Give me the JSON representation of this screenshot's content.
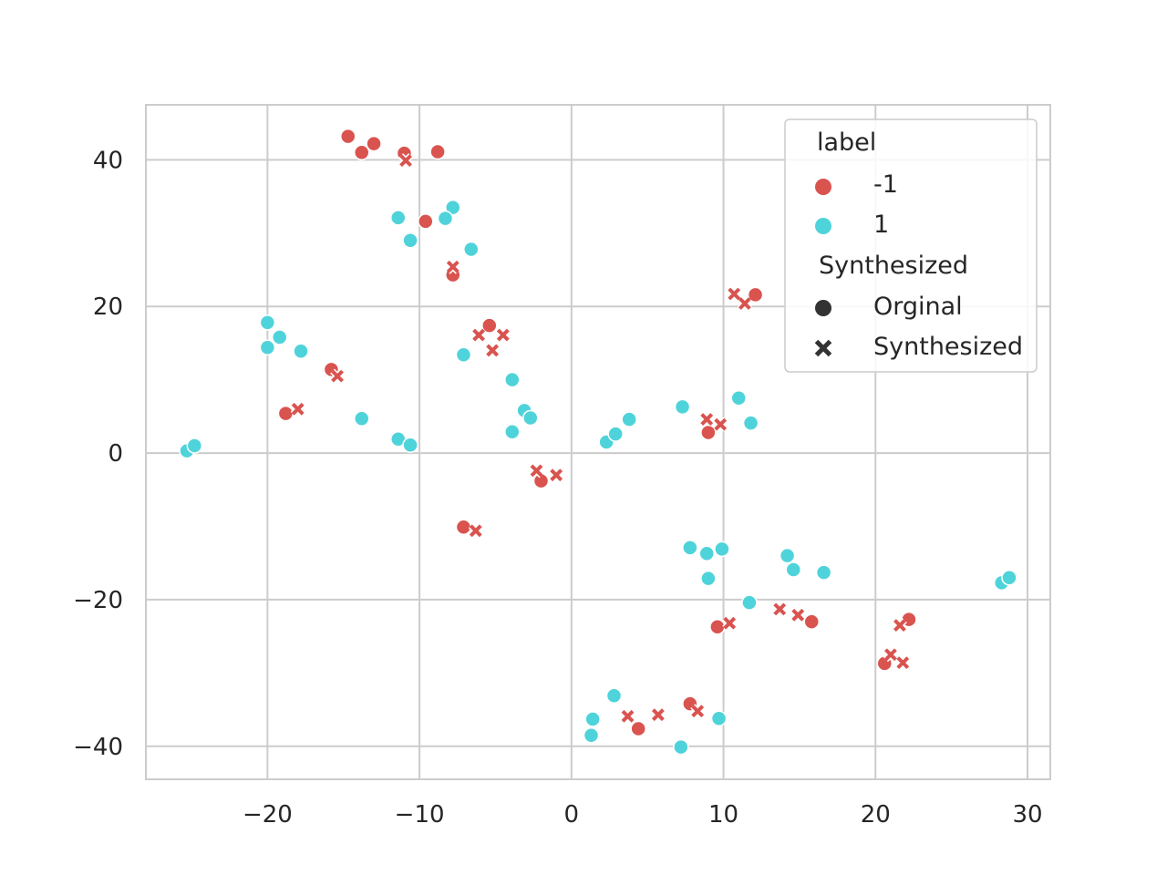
{
  "chart_data": {
    "type": "scatter",
    "title": "",
    "xlabel": "",
    "ylabel": "",
    "xlim": [
      -28,
      31.5
    ],
    "ylim": [
      -44.5,
      47.5
    ],
    "xticks": [
      -20,
      -10,
      0,
      10,
      20,
      30
    ],
    "yticks": [
      40,
      20,
      0,
      -20,
      -40
    ],
    "grid": true,
    "legend_position": "top-right",
    "legend": {
      "hue_title": "label",
      "hue_entries": [
        {
          "label": "-1",
          "color": "#d9534f"
        },
        {
          "label": "1",
          "color": "#4fd3da"
        }
      ],
      "style_title": "Synthesized",
      "style_entries": [
        {
          "label": "Orginal",
          "marker": "circle"
        },
        {
          "label": "Synthesized",
          "marker": "x"
        }
      ]
    },
    "series": [
      {
        "label": "-1",
        "style": "Orginal",
        "points": [
          [
            -14.7,
            43.2
          ],
          [
            -13.8,
            41.0
          ],
          [
            -13.0,
            42.2
          ],
          [
            -11.0,
            40.9
          ],
          [
            -8.8,
            41.1
          ],
          [
            -9.6,
            31.6
          ],
          [
            -7.8,
            24.3
          ],
          [
            -5.4,
            17.4
          ],
          [
            -15.8,
            11.4
          ],
          [
            -18.8,
            5.4
          ],
          [
            -2.0,
            -3.8
          ],
          [
            -7.1,
            -10.1
          ],
          [
            12.1,
            21.6
          ],
          [
            9.0,
            2.8
          ],
          [
            9.6,
            -23.7
          ],
          [
            15.8,
            -23.0
          ],
          [
            22.2,
            -22.7
          ],
          [
            20.6,
            -28.7
          ],
          [
            7.8,
            -34.2
          ],
          [
            4.4,
            -37.6
          ]
        ]
      },
      {
        "label": "-1",
        "style": "Synthesized",
        "points": [
          [
            -10.9,
            39.9
          ],
          [
            -7.8,
            25.4
          ],
          [
            -6.1,
            16.1
          ],
          [
            -4.5,
            16.1
          ],
          [
            -5.2,
            14.0
          ],
          [
            -15.4,
            10.5
          ],
          [
            -18.0,
            6.0
          ],
          [
            -2.3,
            -2.4
          ],
          [
            -1.0,
            -3.0
          ],
          [
            -6.3,
            -10.6
          ],
          [
            10.7,
            21.7
          ],
          [
            11.4,
            20.4
          ],
          [
            8.9,
            4.6
          ],
          [
            9.8,
            3.9
          ],
          [
            10.4,
            -23.2
          ],
          [
            13.7,
            -21.3
          ],
          [
            14.9,
            -22.1
          ],
          [
            21.6,
            -23.5
          ],
          [
            21.0,
            -27.5
          ],
          [
            21.8,
            -28.6
          ],
          [
            3.7,
            -35.9
          ],
          [
            5.7,
            -35.7
          ],
          [
            8.3,
            -35.2
          ]
        ]
      },
      {
        "label": "1",
        "style": "Orginal",
        "points": [
          [
            -11.4,
            32.1
          ],
          [
            -7.8,
            33.5
          ],
          [
            -8.3,
            32.0
          ],
          [
            -10.6,
            29.0
          ],
          [
            -6.6,
            27.8
          ],
          [
            -20.0,
            17.8
          ],
          [
            -19.2,
            15.8
          ],
          [
            -20.0,
            14.4
          ],
          [
            -17.8,
            13.9
          ],
          [
            -7.1,
            13.4
          ],
          [
            -3.9,
            10.0
          ],
          [
            -13.8,
            4.7
          ],
          [
            -11.4,
            1.9
          ],
          [
            -10.6,
            1.1
          ],
          [
            -25.3,
            0.3
          ],
          [
            -24.8,
            1.0
          ],
          [
            -3.1,
            5.8
          ],
          [
            -2.7,
            4.8
          ],
          [
            -3.9,
            2.9
          ],
          [
            2.3,
            1.5
          ],
          [
            2.9,
            2.6
          ],
          [
            3.8,
            4.6
          ],
          [
            7.3,
            6.3
          ],
          [
            11.0,
            7.5
          ],
          [
            11.8,
            4.1
          ],
          [
            7.8,
            -12.9
          ],
          [
            8.9,
            -13.7
          ],
          [
            9.9,
            -13.1
          ],
          [
            9.0,
            -17.1
          ],
          [
            14.2,
            -14.0
          ],
          [
            14.6,
            -15.9
          ],
          [
            16.6,
            -16.3
          ],
          [
            11.7,
            -20.4
          ],
          [
            28.3,
            -17.7
          ],
          [
            28.8,
            -17.0
          ],
          [
            2.8,
            -33.1
          ],
          [
            1.4,
            -36.3
          ],
          [
            1.3,
            -38.5
          ],
          [
            9.7,
            -36.2
          ],
          [
            7.2,
            -40.1
          ]
        ]
      }
    ]
  }
}
